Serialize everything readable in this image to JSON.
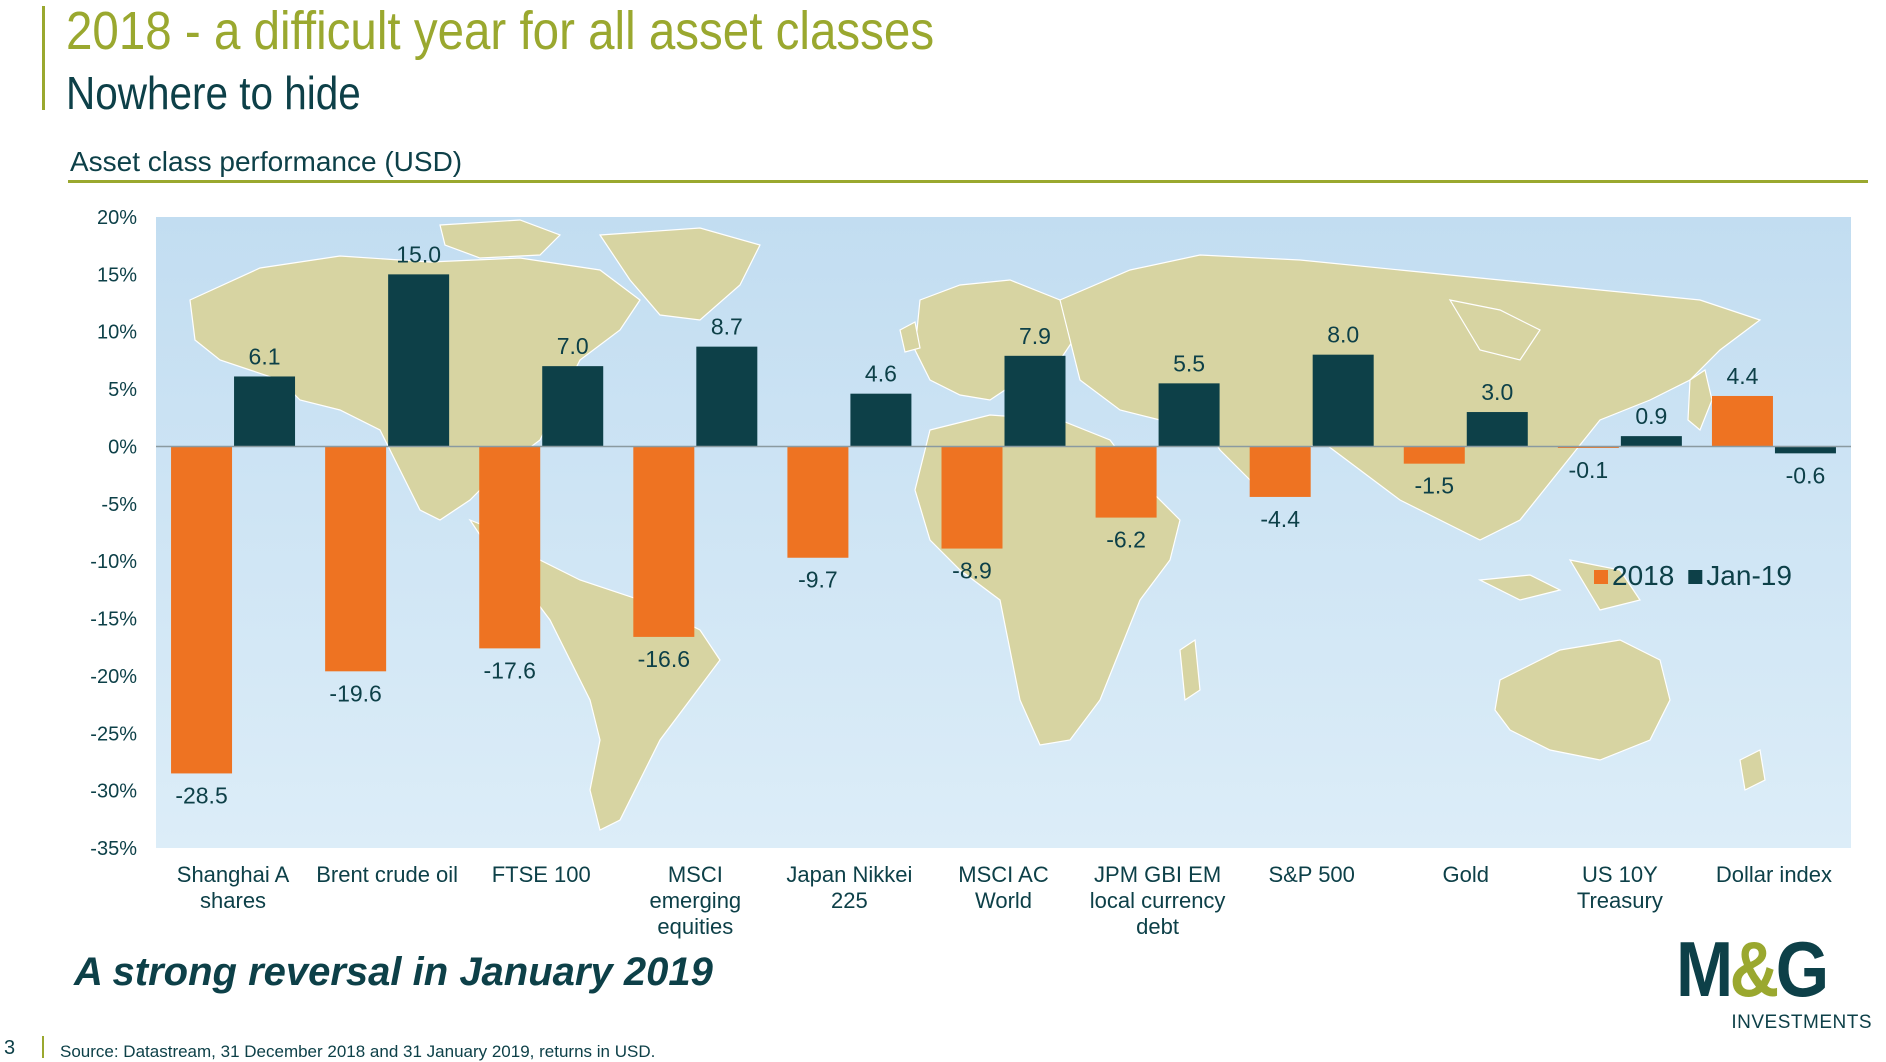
{
  "slide": {
    "title": "2018 - a difficult year for all asset classes",
    "subtitle": "Nowhere to hide",
    "chart_heading": "Asset class performance (USD)",
    "tagline": "A strong reversal in January 2019",
    "page_number": "3",
    "source": "Source: Datastream, 31 December 2018 and 31 January 2019, returns in USD.",
    "logo": {
      "mark": "M&G",
      "text": "INVESTMENTS"
    }
  },
  "colors": {
    "accent": "#9aa82f",
    "dark_teal": "#0d4048",
    "series_2018": "#ee7322",
    "series_jan19": "#0d4048",
    "plot_background": "#c8e2f3",
    "map_land": "#d7d4a2"
  },
  "chart_data": {
    "type": "bar",
    "title": "Asset class performance (USD)",
    "categories": [
      "Shanghai A shares",
      "Brent crude oil",
      "FTSE 100",
      "MSCI emerging equities",
      "Japan Nikkei 225",
      "MSCI AC World",
      "JPM GBI EM local currency debt",
      "S&P 500",
      "Gold",
      "US 10Y Treasury",
      "Dollar index"
    ],
    "category_lines": [
      [
        "Shanghai A",
        "shares"
      ],
      [
        "Brent crude oil"
      ],
      [
        "FTSE 100"
      ],
      [
        "MSCI",
        "emerging",
        "equities"
      ],
      [
        "Japan Nikkei",
        "225"
      ],
      [
        "MSCI AC",
        "World"
      ],
      [
        "JPM GBI EM",
        "local currency",
        "debt"
      ],
      [
        "S&P 500"
      ],
      [
        "Gold"
      ],
      [
        "US 10Y",
        "Treasury"
      ],
      [
        "Dollar index"
      ]
    ],
    "series": [
      {
        "name": "2018",
        "values": [
          -28.5,
          -19.6,
          -17.6,
          -16.6,
          -9.7,
          -8.9,
          -6.2,
          -4.4,
          -1.5,
          -0.1,
          4.4
        ],
        "labels": [
          "-28.5",
          "-19.6",
          "-17.6",
          "-16.6",
          "-9.7",
          "-8.9",
          "-6.2",
          "-4.4",
          "-1.5",
          "-0.1",
          "4.4"
        ]
      },
      {
        "name": "Jan-19",
        "values": [
          6.1,
          15.0,
          7.0,
          8.7,
          4.6,
          7.9,
          5.5,
          8.0,
          3.0,
          0.9,
          -0.6
        ],
        "labels": [
          "6.1",
          "15.0",
          "7.0",
          "8.7",
          "4.6",
          "7.9",
          "5.5",
          "8.0",
          "3.0",
          "0.9",
          "-0.6"
        ]
      }
    ],
    "ylim": [
      -35,
      20
    ],
    "yticks": [
      20,
      15,
      10,
      5,
      0,
      -5,
      -10,
      -15,
      -20,
      -25,
      -30,
      -35
    ],
    "ytick_labels": [
      "20%",
      "15%",
      "10%",
      "5%",
      "0%",
      "-5%",
      "-10%",
      "-15%",
      "-20%",
      "-25%",
      "-30%",
      "-35%"
    ],
    "legend": {
      "position": "right",
      "entries": [
        "2018",
        "Jan-19"
      ]
    },
    "background": "world map",
    "grid": false
  }
}
